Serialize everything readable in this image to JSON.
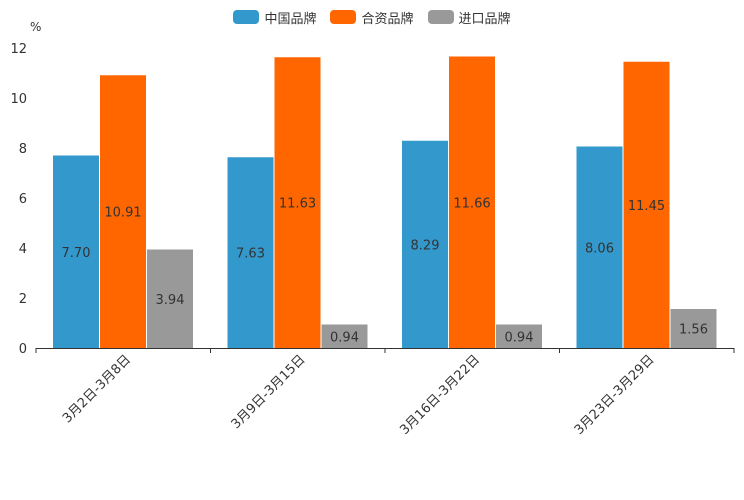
{
  "chart_data": {
    "type": "bar",
    "title": "",
    "xlabel": "",
    "ylabel": "%",
    "ylim": [
      0,
      12
    ],
    "yticks": [
      0,
      2,
      4,
      6,
      8,
      10,
      12
    ],
    "grid": false,
    "legend_position": "top-center",
    "categories": [
      "3月2日-3月8日",
      "3月9日-3月15日",
      "3月16日-3月22日",
      "3月23日-3月29日"
    ],
    "series": [
      {
        "name": "中国品牌",
        "color": "#3399cc",
        "values": [
          7.7,
          7.63,
          8.29,
          8.06
        ],
        "labels": [
          "7.70",
          "7.63",
          "8.29",
          "8.06"
        ]
      },
      {
        "name": "合资品牌",
        "color": "#ff6600",
        "values": [
          10.91,
          11.63,
          11.66,
          11.45
        ],
        "labels": [
          "10.91",
          "11.63",
          "11.66",
          "11.45"
        ]
      },
      {
        "name": "进口品牌",
        "color": "#999999",
        "values": [
          3.94,
          0.94,
          0.94,
          1.56
        ],
        "labels": [
          "3.94",
          "0.94",
          "0.94",
          "1.56"
        ]
      }
    ]
  }
}
